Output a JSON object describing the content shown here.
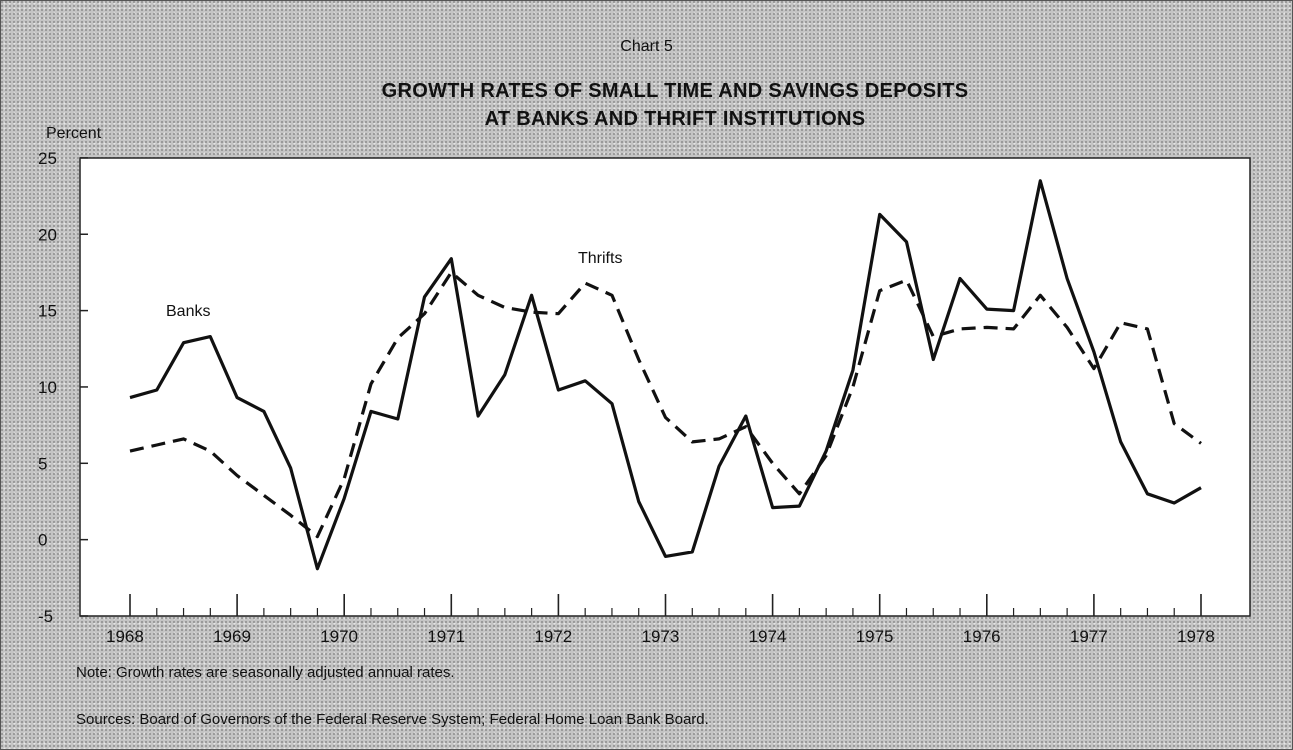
{
  "chart_number": "Chart 5",
  "title_line1": "GROWTH RATES OF SMALL TIME AND SAVINGS DEPOSITS",
  "title_line2": "AT BANKS AND THRIFT INSTITUTIONS",
  "note": "Note:  Growth rates are seasonally adjusted annual rates.",
  "sources": "Sources:  Board of Governors of the Federal Reserve System; Federal Home Loan Bank Board.",
  "chart_data": {
    "type": "line",
    "title": "GROWTH RATES OF SMALL TIME AND SAVINGS DEPOSITS AT BANKS AND THRIFT INSTITUTIONS",
    "ylabel": "Percent",
    "xlabel": "",
    "ylim": [
      -5,
      25
    ],
    "xlim": [
      1968,
      1978
    ],
    "yticks": [
      25,
      20,
      15,
      10,
      5,
      0,
      -5
    ],
    "xticks": [
      1968,
      1969,
      1970,
      1971,
      1972,
      1973,
      1974,
      1975,
      1976,
      1977,
      1978
    ],
    "legend": "none (series labeled directly on chart)",
    "grid": false,
    "series": [
      {
        "name": "Banks",
        "style": "solid",
        "x": [
          1968.0,
          1968.25,
          1968.5,
          1968.75,
          1969.0,
          1969.25,
          1969.5,
          1969.75,
          1970.0,
          1970.25,
          1970.5,
          1970.75,
          1971.0,
          1971.25,
          1971.5,
          1971.75,
          1972.0,
          1972.25,
          1972.5,
          1972.75,
          1973.0,
          1973.25,
          1973.5,
          1973.75,
          1974.0,
          1974.25,
          1974.5,
          1974.75,
          1975.0,
          1975.25,
          1975.5,
          1975.75,
          1976.0,
          1976.25,
          1976.5,
          1976.75,
          1977.0,
          1977.25,
          1977.5,
          1977.75,
          1978.0
        ],
        "values": [
          9.3,
          9.8,
          12.9,
          13.3,
          9.3,
          8.4,
          4.7,
          -1.9,
          2.7,
          8.4,
          7.9,
          15.9,
          18.4,
          8.1,
          10.8,
          16.0,
          9.8,
          10.4,
          8.9,
          2.5,
          -1.1,
          -0.8,
          4.8,
          8.1,
          2.1,
          2.2,
          5.8,
          11.1,
          21.3,
          19.5,
          11.8,
          17.1,
          15.1,
          15.0,
          23.5,
          17.1,
          12.3,
          6.4,
          3.0,
          2.4,
          3.4
        ]
      },
      {
        "name": "Thrifts",
        "style": "dashed",
        "x": [
          1968.0,
          1968.25,
          1968.5,
          1968.75,
          1969.0,
          1969.25,
          1969.5,
          1969.75,
          1970.0,
          1970.25,
          1970.5,
          1970.75,
          1971.0,
          1971.25,
          1971.5,
          1971.75,
          1972.0,
          1972.25,
          1972.5,
          1972.75,
          1973.0,
          1973.25,
          1973.5,
          1973.75,
          1974.0,
          1974.25,
          1974.5,
          1974.75,
          1975.0,
          1975.25,
          1975.5,
          1975.75,
          1976.0,
          1976.25,
          1976.5,
          1976.75,
          1977.0,
          1977.25,
          1977.5,
          1977.75,
          1978.0
        ],
        "values": [
          5.8,
          6.2,
          6.6,
          5.8,
          4.2,
          2.9,
          1.6,
          0.2,
          4.0,
          10.2,
          13.2,
          14.8,
          17.5,
          16.0,
          15.2,
          14.9,
          14.8,
          16.8,
          16.0,
          11.8,
          8.0,
          6.4,
          6.6,
          7.4,
          5.0,
          3.0,
          5.5,
          10.0,
          16.3,
          17.0,
          13.3,
          13.8,
          13.9,
          13.8,
          16.0,
          13.9,
          11.2,
          14.2,
          13.8,
          7.6,
          6.3
        ]
      }
    ]
  }
}
